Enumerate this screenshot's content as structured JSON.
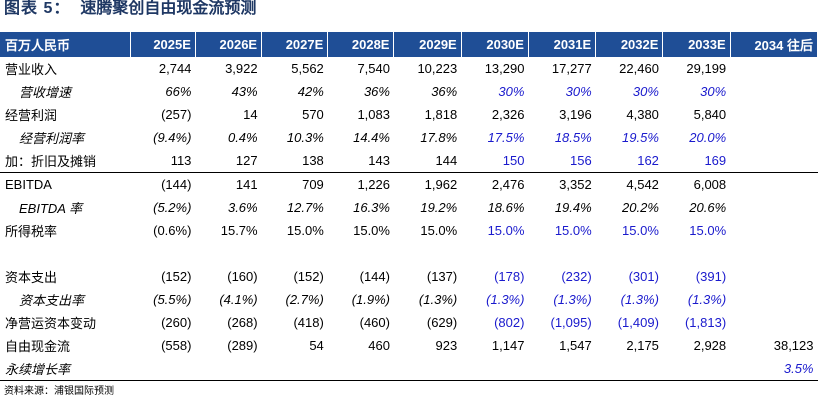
{
  "title": {
    "label": "图表 5：",
    "text": "速腾聚创自由现金流预测"
  },
  "table": {
    "headers": [
      "百万人民币",
      "2025E",
      "2026E",
      "2027E",
      "2028E",
      "2029E",
      "2030E",
      "2031E",
      "2032E",
      "2033E",
      "2034 往后"
    ],
    "rows": [
      {
        "label": "营业收入",
        "values": [
          "2,744",
          "3,922",
          "5,562",
          "7,540",
          "10,223",
          "13,290",
          "17,277",
          "22,460",
          "29,199",
          ""
        ]
      },
      {
        "label": "营收增速",
        "values": [
          "66%",
          "43%",
          "42%",
          "36%",
          "36%",
          "30%",
          "30%",
          "30%",
          "30%",
          ""
        ]
      },
      {
        "label": "经营利润",
        "values": [
          "(257)",
          "14",
          "570",
          "1,083",
          "1,818",
          "2,326",
          "3,196",
          "4,380",
          "5,840",
          ""
        ]
      },
      {
        "label": "经营利润率",
        "values": [
          "(9.4%)",
          "0.4%",
          "10.3%",
          "14.4%",
          "17.8%",
          "17.5%",
          "18.5%",
          "19.5%",
          "20.0%",
          ""
        ]
      },
      {
        "label": "加：折旧及摊销",
        "values": [
          "113",
          "127",
          "138",
          "143",
          "144",
          "150",
          "156",
          "162",
          "169",
          ""
        ]
      },
      {
        "label": "EBITDA",
        "values": [
          "(144)",
          "141",
          "709",
          "1,226",
          "1,962",
          "2,476",
          "3,352",
          "4,542",
          "6,008",
          ""
        ]
      },
      {
        "label": "EBITDA 率",
        "values": [
          "(5.2%)",
          "3.6%",
          "12.7%",
          "16.3%",
          "19.2%",
          "18.6%",
          "19.4%",
          "20.2%",
          "20.6%",
          ""
        ]
      },
      {
        "label": "所得税率",
        "values": [
          "(0.6%)",
          "15.7%",
          "15.0%",
          "15.0%",
          "15.0%",
          "15.0%",
          "15.0%",
          "15.0%",
          "15.0%",
          ""
        ]
      },
      {
        "label": "",
        "values": [
          "",
          "",
          "",
          "",
          "",
          "",
          "",
          "",
          "",
          ""
        ]
      },
      {
        "label": "资本支出",
        "values": [
          "(152)",
          "(160)",
          "(152)",
          "(144)",
          "(137)",
          "(178)",
          "(232)",
          "(301)",
          "(391)",
          ""
        ]
      },
      {
        "label": "资本支出率",
        "values": [
          "(5.5%)",
          "(4.1%)",
          "(2.7%)",
          "(1.9%)",
          "(1.3%)",
          "(1.3%)",
          "(1.3%)",
          "(1.3%)",
          "(1.3%)",
          ""
        ]
      },
      {
        "label": "净营运资本变动",
        "values": [
          "(260)",
          "(268)",
          "(418)",
          "(460)",
          "(629)",
          "(802)",
          "(1,095)",
          "(1,409)",
          "(1,813)",
          ""
        ]
      },
      {
        "label": "自由现金流",
        "values": [
          "(558)",
          "(289)",
          "54",
          "460",
          "923",
          "1,147",
          "1,547",
          "2,175",
          "2,928",
          "38,123"
        ]
      },
      {
        "label": "永续增长率",
        "values": [
          "",
          "",
          "",
          "",
          "",
          "",
          "",
          "",
          "",
          "3.5%"
        ]
      }
    ]
  },
  "source": "资料来源：浦银国际预测",
  "colors": {
    "header_bg": "#1f4e96",
    "forecast_text": "#1a1acd",
    "title_text": "#1f3864"
  }
}
